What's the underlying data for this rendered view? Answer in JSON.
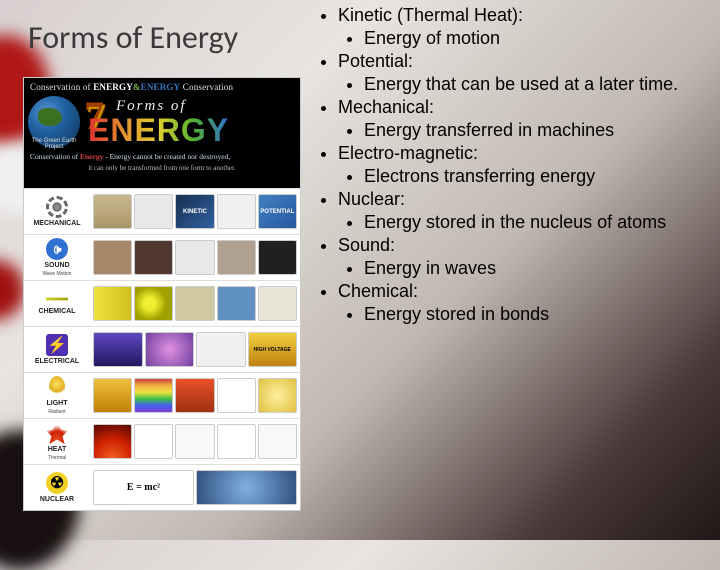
{
  "title": "Forms of Energy",
  "infographic": {
    "header": {
      "line1_a": "Conservation of ",
      "line1_b": "ENERGY",
      "line1_amp": "&",
      "line1_c": "ENERGY",
      "line1_d": " Conservation",
      "seven": "7",
      "forms_of": "Forms of",
      "energy": "ENERGY",
      "green_earth": "The Green Earth Project",
      "sub1_a": "Conservation of ",
      "sub1_b": "Energy",
      "sub1_c": " - Energy cannot be created nor destroyed,",
      "sub2": "it can only be transformed from one form to another."
    },
    "rows": [
      {
        "label": "MECHANICAL",
        "sublabel": "",
        "icon": "ico-gear",
        "kinetic": "KINETIC",
        "potential": "POTENTIAL",
        "thumbs": [
          "mech1",
          "mech2",
          "mech3",
          "mech4",
          "mech5"
        ]
      },
      {
        "label": "SOUND",
        "sublabel": "Wave Motion",
        "icon": "ico-sound",
        "thumbs": [
          "snd1",
          "snd2",
          "snd3",
          "snd4",
          "snd5"
        ]
      },
      {
        "label": "CHEMICAL",
        "sublabel": "",
        "icon": "ico-chem",
        "thumbs": [
          "chem1",
          "chem2",
          "chem3",
          "chem4",
          "chem5"
        ]
      },
      {
        "label": "ELECTRICAL",
        "sublabel": "",
        "icon": "ico-elec",
        "thumbs": [
          "el1",
          "el2",
          "el3",
          "el4"
        ]
      },
      {
        "label": "LIGHT",
        "sublabel": "Radiant",
        "icon": "ico-light",
        "thumbs": [
          "lt1",
          "lt2",
          "lt3",
          "lt4",
          "lt5"
        ]
      },
      {
        "label": "HEAT",
        "sublabel": "Thermal",
        "icon": "ico-heat",
        "thumbs": [
          "ht1",
          "ht2",
          "ht3",
          "ht4",
          "ht5"
        ]
      },
      {
        "label": "NUCLEAR",
        "sublabel": "",
        "icon": "ico-nuc",
        "emc2": "E = mc²",
        "thumbs": [
          "nu1",
          "nu2"
        ]
      }
    ],
    "high_voltage": "HIGH VOLTAGE"
  },
  "bullets": [
    {
      "head": "Kinetic (Thermal Heat):",
      "sub": "Energy of motion"
    },
    {
      "head": "Potential:",
      "sub": "Energy that can be used at a later time."
    },
    {
      "head": "Mechanical:",
      "sub": "Energy transferred in machines"
    },
    {
      "head": "Electro-magnetic:",
      "sub": "Electrons transferring energy"
    },
    {
      "head": "Nuclear:",
      "sub": "Energy stored in the nucleus of atoms"
    },
    {
      "head": "Sound:",
      "sub": "Energy in waves"
    },
    {
      "head": "Chemical:",
      "sub": "Energy stored in bonds"
    }
  ],
  "colors": {
    "title": "#3a3a3a",
    "text": "#000000",
    "bg_gradient": [
      "#d8d0d0",
      "#e8e4e0",
      "#c0b8b0",
      "#4a3838",
      "#201818"
    ]
  }
}
